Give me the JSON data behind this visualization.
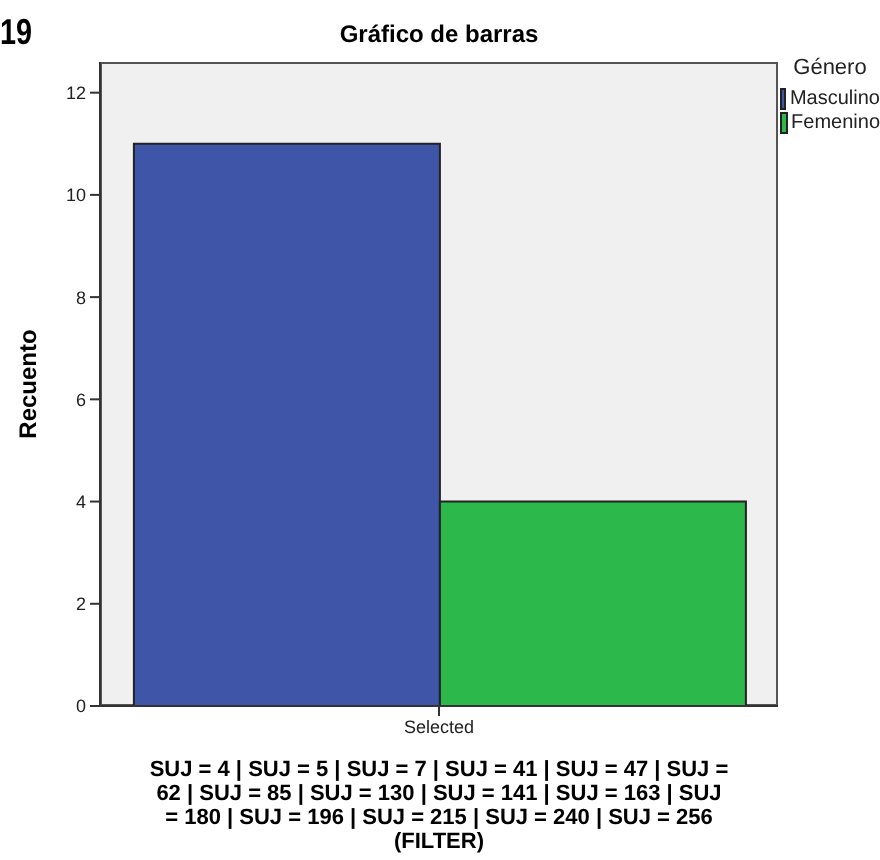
{
  "chart_data": {
    "type": "bar",
    "title": "Gráfico de barras",
    "xlabel": "SUJ = 4 | SUJ = 5 | SUJ = 7 | SUJ = 41 | SUJ = 47 | SUJ = 62 | SUJ = 85 | SUJ = 130 | SUJ = 141 | SUJ = 163 | SUJ = 180 | SUJ = 196 | SUJ = 215 | SUJ = 240 | SUJ = 256 (FILTER)",
    "ylabel": "Recuento",
    "legend_title": "Género",
    "annotations": [
      "19"
    ],
    "categories": [
      "Selected"
    ],
    "series": [
      {
        "name": "Masculino",
        "color": "#3f56a8",
        "values": [
          11
        ]
      },
      {
        "name": "Femenino",
        "color": "#2db84b",
        "values": [
          4
        ]
      }
    ],
    "ylim": [
      0,
      12.6
    ],
    "yticks": [
      0,
      2,
      4,
      6,
      8,
      10,
      12
    ],
    "legend": "top right"
  }
}
